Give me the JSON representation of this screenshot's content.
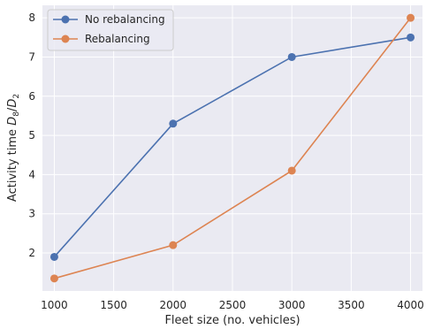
{
  "chart_data": {
    "type": "line",
    "title": "",
    "xlabel": "Fleet size (no. vehicles)",
    "ylabel": {
      "prefix": "Activity time ",
      "d_num": "D",
      "num_sub": "8",
      "slash": "/",
      "d_den": "D",
      "den_sub": "2"
    },
    "x": [
      1000,
      2000,
      3000,
      4000
    ],
    "series": [
      {
        "name": "No rebalancing",
        "color": "#4c72b0",
        "values": [
          1.9,
          5.3,
          7.0,
          7.5
        ]
      },
      {
        "name": "Rebalancing",
        "color": "#dd8452",
        "values": [
          1.35,
          2.2,
          4.1,
          8.0
        ]
      }
    ],
    "xlim": [
      900,
      4100
    ],
    "ylim": [
      1.03,
      8.32
    ],
    "xticks": [
      1000,
      1500,
      2000,
      2500,
      3000,
      3500,
      4000
    ],
    "yticks": [
      2,
      3,
      4,
      5,
      6,
      7,
      8
    ],
    "grid": true,
    "legend_position": "top-left",
    "background_color": "#eaeaf2",
    "grid_color": "#ffffff"
  }
}
